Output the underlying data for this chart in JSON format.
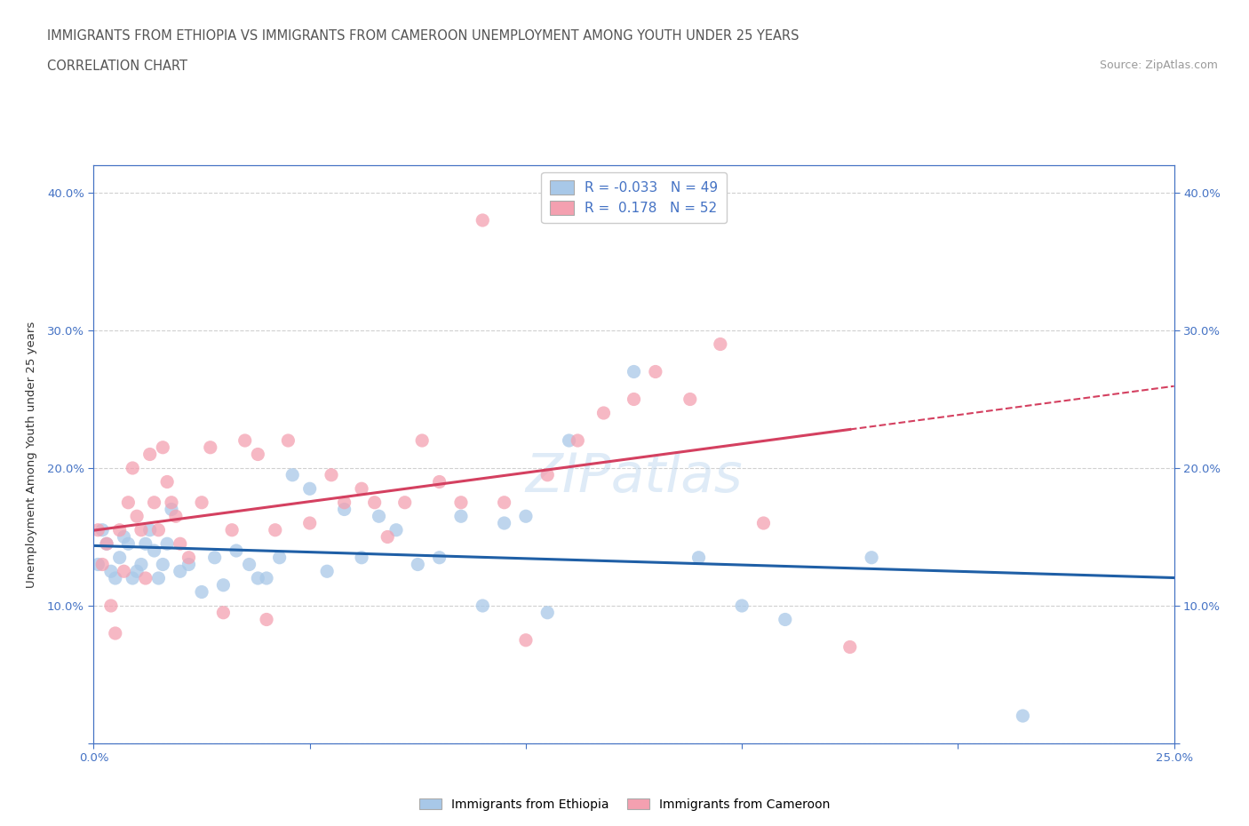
{
  "title_line1": "IMMIGRANTS FROM ETHIOPIA VS IMMIGRANTS FROM CAMEROON UNEMPLOYMENT AMONG YOUTH UNDER 25 YEARS",
  "title_line2": "CORRELATION CHART",
  "source_text": "Source: ZipAtlas.com",
  "ylabel": "Unemployment Among Youth under 25 years",
  "watermark": "ZIPatlas",
  "xlim": [
    0.0,
    0.25
  ],
  "ylim": [
    0.0,
    0.42
  ],
  "legend_ethiopia": "Immigrants from Ethiopia",
  "legend_cameroon": "Immigrants from Cameroon",
  "R_ethiopia": -0.033,
  "N_ethiopia": 49,
  "R_cameroon": 0.178,
  "N_cameroon": 52,
  "color_ethiopia": "#a8c8e8",
  "color_cameroon": "#f4a0b0",
  "line_color_ethiopia": "#1f5fa6",
  "line_color_cameroon": "#d44060",
  "ethiopia_x": [
    0.001,
    0.002,
    0.003,
    0.004,
    0.005,
    0.006,
    0.007,
    0.008,
    0.009,
    0.01,
    0.011,
    0.012,
    0.013,
    0.014,
    0.015,
    0.016,
    0.017,
    0.018,
    0.02,
    0.022,
    0.025,
    0.028,
    0.03,
    0.033,
    0.036,
    0.038,
    0.04,
    0.043,
    0.046,
    0.05,
    0.054,
    0.058,
    0.062,
    0.066,
    0.07,
    0.075,
    0.08,
    0.085,
    0.09,
    0.095,
    0.1,
    0.105,
    0.11,
    0.125,
    0.14,
    0.15,
    0.16,
    0.18,
    0.215
  ],
  "ethiopia_y": [
    0.13,
    0.155,
    0.145,
    0.125,
    0.12,
    0.135,
    0.15,
    0.145,
    0.12,
    0.125,
    0.13,
    0.145,
    0.155,
    0.14,
    0.12,
    0.13,
    0.145,
    0.17,
    0.125,
    0.13,
    0.11,
    0.135,
    0.115,
    0.14,
    0.13,
    0.12,
    0.12,
    0.135,
    0.195,
    0.185,
    0.125,
    0.17,
    0.135,
    0.165,
    0.155,
    0.13,
    0.135,
    0.165,
    0.1,
    0.16,
    0.165,
    0.095,
    0.22,
    0.27,
    0.135,
    0.1,
    0.09,
    0.135,
    0.02
  ],
  "cameroon_x": [
    0.001,
    0.002,
    0.003,
    0.004,
    0.005,
    0.006,
    0.007,
    0.008,
    0.009,
    0.01,
    0.011,
    0.012,
    0.013,
    0.014,
    0.015,
    0.016,
    0.017,
    0.018,
    0.019,
    0.02,
    0.022,
    0.025,
    0.027,
    0.03,
    0.032,
    0.035,
    0.038,
    0.04,
    0.042,
    0.045,
    0.05,
    0.055,
    0.058,
    0.062,
    0.065,
    0.068,
    0.072,
    0.076,
    0.08,
    0.085,
    0.09,
    0.095,
    0.1,
    0.105,
    0.112,
    0.118,
    0.125,
    0.13,
    0.138,
    0.145,
    0.155,
    0.175
  ],
  "cameroon_y": [
    0.155,
    0.13,
    0.145,
    0.1,
    0.08,
    0.155,
    0.125,
    0.175,
    0.2,
    0.165,
    0.155,
    0.12,
    0.21,
    0.175,
    0.155,
    0.215,
    0.19,
    0.175,
    0.165,
    0.145,
    0.135,
    0.175,
    0.215,
    0.095,
    0.155,
    0.22,
    0.21,
    0.09,
    0.155,
    0.22,
    0.16,
    0.195,
    0.175,
    0.185,
    0.175,
    0.15,
    0.175,
    0.22,
    0.19,
    0.175,
    0.38,
    0.175,
    0.075,
    0.195,
    0.22,
    0.24,
    0.25,
    0.27,
    0.25,
    0.29,
    0.16,
    0.07
  ],
  "background_color": "#ffffff",
  "grid_color": "#d0d0d0",
  "title_fontsize": 10.5,
  "axis_label_fontsize": 9.5,
  "tick_fontsize": 9.5,
  "tick_color": "#4472c4",
  "axis_color": "#4472c4"
}
